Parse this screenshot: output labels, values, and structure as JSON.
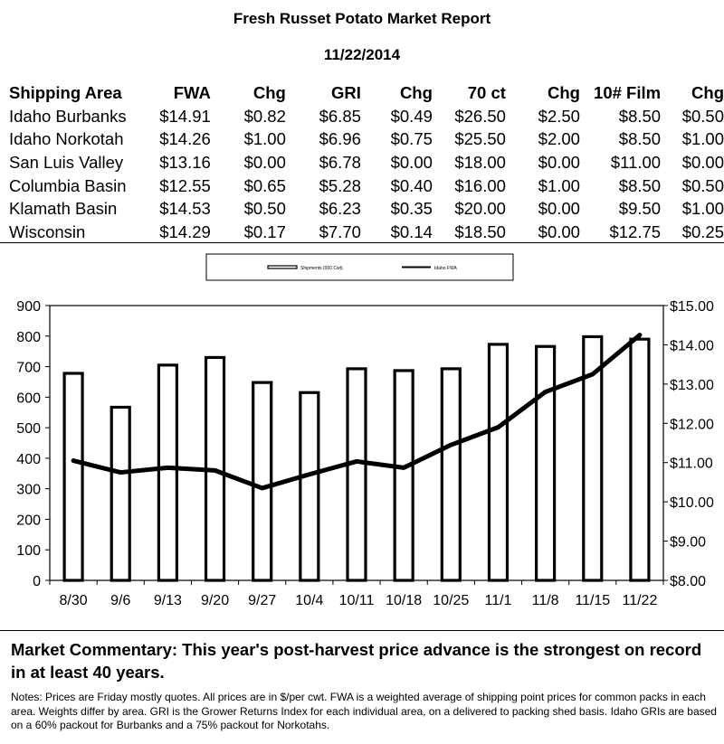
{
  "report": {
    "title": "Fresh Russet Potato Market Report",
    "date": "11/22/2014"
  },
  "table": {
    "headers": [
      "Shipping Area",
      "FWA",
      "Chg",
      "GRI",
      "Chg",
      "70 ct",
      "Chg",
      "10# Film",
      "Chg"
    ],
    "rows": [
      [
        "Idaho Burbanks",
        "$14.91",
        "$0.82",
        "$6.85",
        "$0.49",
        "$26.50",
        "$2.50",
        "$8.50",
        "$0.50"
      ],
      [
        "Idaho Norkotah",
        "$14.26",
        "$1.00",
        "$6.96",
        "$0.75",
        "$25.50",
        "$2.00",
        "$8.50",
        "$1.00"
      ],
      [
        "San Luis Valley",
        "$13.16",
        "$0.00",
        "$6.78",
        "$0.00",
        "$18.00",
        "$0.00",
        "$11.00",
        "$0.00"
      ],
      [
        "Columbia Basin",
        "$12.55",
        "$0.65",
        "$5.28",
        "$0.40",
        "$16.00",
        "$1.00",
        "$8.50",
        "$0.50"
      ],
      [
        "Klamath Basin",
        "$14.53",
        "$0.50",
        "$6.23",
        "$0.35",
        "$20.00",
        "$0.00",
        "$9.50",
        "$1.00"
      ],
      [
        "Wisconsin",
        "$14.29",
        "$0.17",
        "$7.70",
        "$0.14",
        "$18.50",
        "$0.00",
        "$12.75",
        "$0.25"
      ]
    ]
  },
  "chart_data": {
    "type": "bar",
    "categories": [
      "8/30",
      "9/6",
      "9/13",
      "9/20",
      "9/27",
      "10/4",
      "10/11",
      "10/18",
      "10/25",
      "11/1",
      "11/8",
      "11/15",
      "11/22"
    ],
    "series": [
      {
        "name": "Shipments (000 Cwt)",
        "type": "bar",
        "axis": "left",
        "values": [
          678,
          567,
          705,
          730,
          648,
          615,
          693,
          687,
          693,
          773,
          766,
          798,
          790
        ]
      },
      {
        "name": "Idaho FWA",
        "type": "line",
        "axis": "right",
        "values": [
          11.05,
          10.75,
          10.87,
          10.8,
          10.35,
          10.7,
          11.03,
          10.87,
          11.45,
          11.9,
          12.8,
          13.25,
          14.25
        ]
      }
    ],
    "left_axis": {
      "ylim": [
        0,
        900
      ],
      "ticks": [
        "0",
        "100",
        "200",
        "300",
        "400",
        "500",
        "600",
        "700",
        "800",
        "900"
      ]
    },
    "right_axis": {
      "ylim": [
        8,
        15
      ],
      "ticks": [
        "$8.00",
        "$9.00",
        "$10.00",
        "$11.00",
        "$12.00",
        "$13.00",
        "$14.00",
        "$15.00"
      ]
    },
    "legend_position": "top-center",
    "grid": false
  },
  "commentary": "Market Commentary: This year's post-harvest price advance is the strongest on record in at least 40 years.",
  "notes": "Notes: Prices are Friday mostly quotes. All prices are in $/per cwt. FWA is a weighted average of shipping point prices for  common packs in each area. Weights differ by area. GRI is the Grower Returns Index for each individual area, on a delivered to packing shed basis. Idaho GRIs are based on a 60% packout for Burbanks and a 75% packout for Norkotahs."
}
